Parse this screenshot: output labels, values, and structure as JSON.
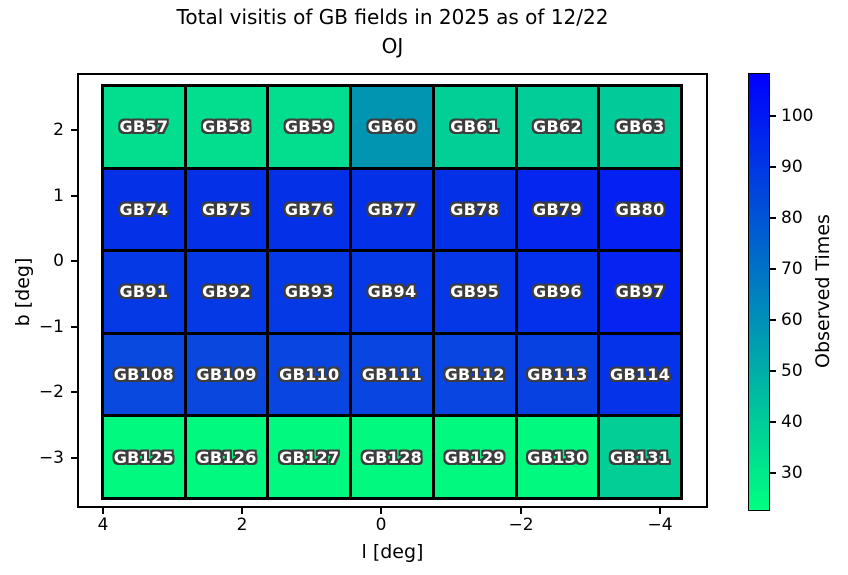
{
  "figure": {
    "title_line1": "Total visitis of GB fields in 2025 as of 12/22",
    "title_line2": "OJ",
    "xlabel": "l [deg]",
    "ylabel": "b [deg]",
    "x_tick_labels": [
      "4",
      "2",
      "0",
      "−2",
      "−4"
    ],
    "y_tick_labels": [
      "2",
      "1",
      "0",
      "−1",
      "−2",
      "−3"
    ],
    "colorbar": {
      "label": "Observed Times",
      "tick_labels": [
        "100",
        "90",
        "80",
        "70",
        "60",
        "50",
        "40",
        "30"
      ],
      "gradient_top_color": "#0000ff",
      "gradient_bottom_color": "#00ff80"
    }
  },
  "chart_data": {
    "type": "heatmap",
    "title": "Total visitis of GB fields in 2025 as of 12/22 OJ",
    "xlabel": "l [deg]",
    "ylabel": "b [deg]",
    "x_ticks": [
      4,
      2,
      0,
      -2,
      -4
    ],
    "y_ticks": [
      2,
      1,
      0,
      -1,
      -2,
      -3
    ],
    "x_axis_reversed": true,
    "colormap": "winter_r (green = low, blue = high)",
    "colorbar_label": "Observed Times",
    "colorbar_ticks": [
      30,
      40,
      50,
      60,
      70,
      80,
      90,
      100
    ],
    "colorbar_range_est": [
      22.5,
      108.5
    ],
    "grid_shape": [
      5,
      7
    ],
    "cells": [
      [
        {
          "label": "GB57",
          "color": "#02de8d",
          "value_est": 34
        },
        {
          "label": "GB58",
          "color": "#02de8d",
          "value_est": 34
        },
        {
          "label": "GB59",
          "color": "#02de8d",
          "value_est": 34
        },
        {
          "label": "GB60",
          "color": "#0295b2",
          "value_est": 58
        },
        {
          "label": "GB61",
          "color": "#02cf96",
          "value_est": 39
        },
        {
          "label": "GB62",
          "color": "#02cd98",
          "value_est": 39
        },
        {
          "label": "GB63",
          "color": "#02cb99",
          "value_est": 40
        }
      ],
      [
        {
          "label": "GB74",
          "color": "#0431e8",
          "value_est": 92
        },
        {
          "label": "GB75",
          "color": "#0431e8",
          "value_est": 92
        },
        {
          "label": "GB76",
          "color": "#0431e8",
          "value_est": 92
        },
        {
          "label": "GB77",
          "color": "#0431e8",
          "value_est": 92
        },
        {
          "label": "GB78",
          "color": "#0431e8",
          "value_est": 92
        },
        {
          "label": "GB79",
          "color": "#0526ef",
          "value_est": 96
        },
        {
          "label": "GB80",
          "color": "#0520f2",
          "value_est": 98
        }
      ],
      [
        {
          "label": "GB91",
          "color": "#0539e6",
          "value_est": 89
        },
        {
          "label": "GB92",
          "color": "#0539e6",
          "value_est": 89
        },
        {
          "label": "GB93",
          "color": "#0539e6",
          "value_est": 89
        },
        {
          "label": "GB94",
          "color": "#0539e6",
          "value_est": 89
        },
        {
          "label": "GB95",
          "color": "#0537e7",
          "value_est": 90
        },
        {
          "label": "GB96",
          "color": "#042feb",
          "value_est": 93
        },
        {
          "label": "GB97",
          "color": "#0524f1",
          "value_est": 96
        }
      ],
      [
        {
          "label": "GB108",
          "color": "#0a49dd",
          "value_est": 84
        },
        {
          "label": "GB109",
          "color": "#0947df",
          "value_est": 85
        },
        {
          "label": "GB110",
          "color": "#0945e0",
          "value_est": 85
        },
        {
          "label": "GB111",
          "color": "#0945e0",
          "value_est": 85
        },
        {
          "label": "GB112",
          "color": "#0945e0",
          "value_est": 85
        },
        {
          "label": "GB113",
          "color": "#0841e2",
          "value_est": 87
        },
        {
          "label": "GB114",
          "color": "#0533e9",
          "value_est": 91
        }
      ],
      [
        {
          "label": "GB125",
          "color": "#01f980",
          "value_est": 25
        },
        {
          "label": "GB126",
          "color": "#01f980",
          "value_est": 25
        },
        {
          "label": "GB127",
          "color": "#01f980",
          "value_est": 25
        },
        {
          "label": "GB128",
          "color": "#01f980",
          "value_est": 25
        },
        {
          "label": "GB129",
          "color": "#01f980",
          "value_est": 25
        },
        {
          "label": "GB130",
          "color": "#01f980",
          "value_est": 25
        },
        {
          "label": "GB131",
          "color": "#02ce96",
          "value_est": 39
        }
      ]
    ]
  }
}
